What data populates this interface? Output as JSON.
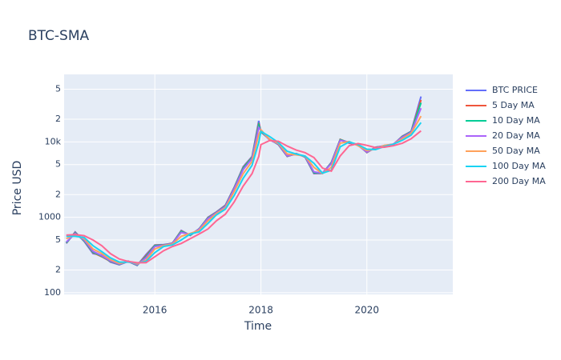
{
  "chart_data": {
    "type": "line",
    "title": "BTC-SMA",
    "x_label": "Time",
    "y_label": "Price USD",
    "yscale": "log",
    "grid": true,
    "legend": "right",
    "background": "#E5ECF6",
    "x": [
      "2014-05-01",
      "2014-07-01",
      "2014-09-01",
      "2014-11-01",
      "2015-01-01",
      "2015-03-01",
      "2015-05-01",
      "2015-07-01",
      "2015-09-01",
      "2015-11-01",
      "2016-01-01",
      "2016-03-01",
      "2016-05-01",
      "2016-07-01",
      "2016-09-01",
      "2016-11-01",
      "2017-01-01",
      "2017-03-01",
      "2017-05-01",
      "2017-07-01",
      "2017-09-01",
      "2017-11-01",
      "2017-12-17",
      "2018-01-01",
      "2018-03-01",
      "2018-05-01",
      "2018-07-01",
      "2018-09-01",
      "2018-11-01",
      "2019-01-01",
      "2019-03-01",
      "2019-05-01",
      "2019-07-01",
      "2019-09-01",
      "2019-11-01",
      "2020-01-01",
      "2020-03-01",
      "2020-05-01",
      "2020-07-01",
      "2020-09-01",
      "2020-11-01",
      "2021-01-08"
    ],
    "xlim": [
      "2014-04-16",
      "2021-08-15"
    ],
    "xticks": [
      {
        "value": "2016-01-01",
        "label": "2016"
      },
      {
        "value": "2018-01-01",
        "label": "2018"
      },
      {
        "value": "2020-01-01",
        "label": "2020"
      }
    ],
    "ylim": [
      95,
      78500
    ],
    "yticks": [
      100,
      {
        "value": 200,
        "label": "2"
      },
      {
        "value": 500,
        "label": "5"
      },
      1000,
      {
        "value": 2000,
        "label": "2"
      },
      {
        "value": 5000,
        "label": "5"
      },
      {
        "value": 10000,
        "label": "10k"
      },
      {
        "value": 20000,
        "label": "2"
      },
      {
        "value": 50000,
        "label": "5"
      }
    ],
    "series": [
      {
        "name": "BTC PRICE",
        "color": "#636efa",
        "values": [
          450,
          640,
          480,
          330,
          315,
          255,
          235,
          260,
          230,
          320,
          430,
          435,
          450,
          670,
          575,
          700,
          1000,
          1180,
          1450,
          2500,
          4700,
          6400,
          19000,
          13500,
          10900,
          9200,
          6400,
          7000,
          6300,
          3800,
          3820,
          5350,
          10600,
          9600,
          9200,
          7200,
          8500,
          8800,
          9200,
          11900,
          13800,
          40000
        ]
      },
      {
        "name": "5 Day MA",
        "color": "#EF553B",
        "values": [
          455,
          630,
          485,
          340,
          300,
          260,
          237,
          262,
          232,
          310,
          425,
          430,
          455,
          660,
          578,
          705,
          990,
          1170,
          1430,
          2480,
          4600,
          6300,
          17800,
          13600,
          10800,
          9250,
          6450,
          6950,
          6350,
          3850,
          3830,
          5300,
          10800,
          9700,
          9100,
          7250,
          8450,
          8850,
          9250,
          11800,
          13700,
          36000
        ]
      },
      {
        "name": "10 Day MA",
        "color": "#00cc96",
        "values": [
          460,
          620,
          490,
          345,
          305,
          262,
          238,
          263,
          233,
          300,
          420,
          428,
          452,
          650,
          580,
          702,
          980,
          1160,
          1410,
          2450,
          4500,
          6200,
          16800,
          13800,
          10700,
          9300,
          6500,
          6900,
          6400,
          3900,
          3850,
          5250,
          10700,
          9800,
          9050,
          7300,
          8400,
          8900,
          9300,
          11700,
          13600,
          33000
        ]
      },
      {
        "name": "20 Day MA",
        "color": "#ab63fa",
        "values": [
          470,
          610,
          500,
          355,
          310,
          265,
          240,
          262,
          236,
          290,
          410,
          425,
          450,
          630,
          590,
          695,
          960,
          1150,
          1390,
          2400,
          4300,
          6000,
          15500,
          14200,
          10600,
          9400,
          6550,
          6850,
          6450,
          4000,
          3850,
          5150,
          10500,
          9900,
          9000,
          7350,
          8300,
          8950,
          9350,
          11500,
          13400,
          28000
        ]
      },
      {
        "name": "50 Day MA",
        "color": "#FFA15A",
        "values": [
          520,
          590,
          520,
          380,
          330,
          275,
          245,
          260,
          242,
          270,
          380,
          420,
          440,
          560,
          610,
          670,
          900,
          1120,
          1330,
          2200,
          3800,
          5500,
          12500,
          14500,
          10800,
          9600,
          6900,
          6750,
          6500,
          4600,
          3800,
          4600,
          9600,
          10100,
          8900,
          7700,
          8000,
          9000,
          9300,
          11000,
          13000,
          22000
        ]
      },
      {
        "name": "100 Day MA",
        "color": "#19d3f3",
        "values": [
          560,
          560,
          540,
          420,
          350,
          290,
          255,
          255,
          248,
          260,
          340,
          410,
          430,
          500,
          600,
          640,
          830,
          1080,
          1280,
          1950,
          3300,
          4900,
          9800,
          13800,
          11800,
          9800,
          7500,
          6900,
          6500,
          5200,
          3850,
          4200,
          8600,
          10000,
          9200,
          8000,
          7900,
          8700,
          9300,
          10500,
          12300,
          18000
        ]
      },
      {
        "name": "200 Day MA",
        "color": "#FF6692",
        "values": [
          580,
          590,
          570,
          500,
          420,
          330,
          280,
          260,
          250,
          250,
          300,
          360,
          410,
          450,
          520,
          600,
          700,
          900,
          1100,
          1600,
          2600,
          3800,
          6400,
          9200,
          10400,
          10200,
          8800,
          7800,
          7200,
          6200,
          4500,
          4100,
          6500,
          8900,
          9500,
          9000,
          8400,
          8500,
          8900,
          9600,
          11000,
          14000
        ]
      }
    ]
  }
}
